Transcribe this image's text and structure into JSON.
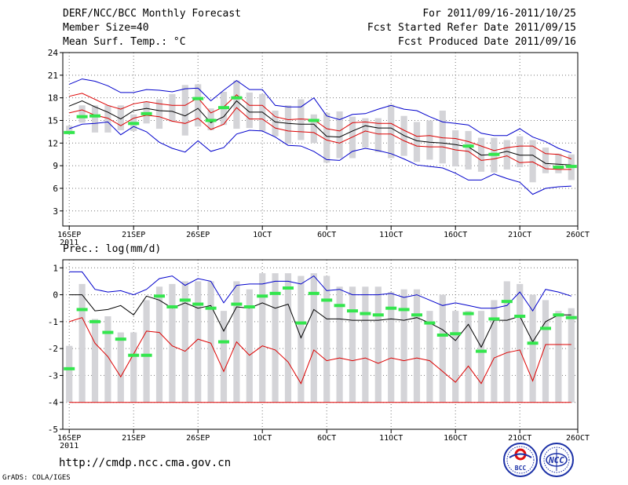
{
  "header": {
    "left_line1": "DERF/NCC/BCC Monthly Forecast",
    "left_line2": "Member Size=40",
    "left_line3": "Mean Surf. Temp.: °C",
    "right_line1": "For 2011/09/16-2011/10/25",
    "right_line2": "Fcst Started Refer Date 2011/09/15",
    "right_line3": "Fcst Produced Date 2011/09/16"
  },
  "panel2_title": "Prec.: log(mm/d)",
  "footer": {
    "url": "http://cmdp.ncc.cma.gov.cn",
    "credit": "GrADS: COLA/IGES",
    "logo1_text": "BCC",
    "logo2_text": "NCC"
  },
  "x_ticks": [
    {
      "day": 0,
      "label": "16SEP",
      "sub": "2011"
    },
    {
      "day": 5,
      "label": "21SEP",
      "sub": ""
    },
    {
      "day": 10,
      "label": "26SEP",
      "sub": ""
    },
    {
      "day": 15,
      "label": "1OCT",
      "sub": ""
    },
    {
      "day": 20,
      "label": "6OCT",
      "sub": ""
    },
    {
      "day": 25,
      "label": "11OCT",
      "sub": ""
    },
    {
      "day": 30,
      "label": "16OCT",
      "sub": ""
    },
    {
      "day": 35,
      "label": "21OCT",
      "sub": ""
    },
    {
      "day": 39.5,
      "label": "26OCT",
      "sub": ""
    }
  ],
  "chart_data": [
    {
      "type": "line",
      "title": "Mean Surf. Temp.: °C",
      "x": [
        0,
        1,
        2,
        3,
        4,
        5,
        6,
        7,
        8,
        9,
        10,
        11,
        12,
        13,
        14,
        15,
        16,
        17,
        18,
        19,
        20,
        21,
        22,
        23,
        24,
        25,
        26,
        27,
        28,
        29,
        30,
        31,
        32,
        33,
        34,
        35,
        36,
        37,
        38,
        39
      ],
      "xlim": [
        -0.5,
        39.5
      ],
      "ylim": [
        1,
        24
      ],
      "yticks": [
        3,
        6,
        9,
        12,
        15,
        18,
        21,
        24
      ],
      "series": [
        {
          "name": "max",
          "color": "#0000cc",
          "values": [
            19.8,
            20.5,
            20.2,
            19.6,
            18.7,
            18.7,
            19.1,
            19.0,
            18.8,
            19.2,
            19.3,
            17.6,
            19.0,
            20.3,
            19.1,
            19.1,
            17.0,
            16.8,
            16.8,
            18.0,
            15.6,
            15.1,
            15.8,
            15.9,
            16.5,
            17.0,
            16.5,
            16.3,
            15.5,
            14.8,
            14.6,
            14.4,
            13.3,
            13.0,
            13.0,
            13.9,
            12.8,
            12.2,
            11.3,
            10.7
          ]
        },
        {
          "name": "upper",
          "color": "#dd0000",
          "values": [
            18.2,
            18.6,
            17.8,
            17.0,
            16.5,
            17.2,
            17.5,
            17.2,
            17.0,
            17.0,
            18.0,
            16.0,
            16.8,
            18.4,
            17.0,
            17.0,
            15.5,
            15.1,
            15.2,
            15.1,
            13.9,
            13.6,
            14.7,
            14.8,
            14.6,
            14.6,
            13.7,
            12.9,
            13.0,
            12.7,
            12.6,
            12.2,
            11.6,
            11.0,
            11.4,
            11.6,
            11.6,
            10.6,
            10.5,
            9.9
          ]
        },
        {
          "name": "mean",
          "color": "#000000",
          "values": [
            16.9,
            17.6,
            16.8,
            16.1,
            15.2,
            16.3,
            16.6,
            16.3,
            16.2,
            15.6,
            16.6,
            14.7,
            15.5,
            17.6,
            16.1,
            16.1,
            14.8,
            14.6,
            14.5,
            14.5,
            12.9,
            12.8,
            13.6,
            14.3,
            14.0,
            14.0,
            13.0,
            12.3,
            12.1,
            12.0,
            11.8,
            11.5,
            10.4,
            10.5,
            10.9,
            10.4,
            10.4,
            9.3,
            9.2,
            9.1
          ]
        },
        {
          "name": "lower",
          "color": "#dd0000",
          "values": [
            16.0,
            16.4,
            15.7,
            15.3,
            14.3,
            15.3,
            15.7,
            15.5,
            14.9,
            14.6,
            15.3,
            13.8,
            14.5,
            16.7,
            15.2,
            15.2,
            14.0,
            13.6,
            13.5,
            13.4,
            12.4,
            12.0,
            12.8,
            13.6,
            13.2,
            13.2,
            12.3,
            11.6,
            11.5,
            11.5,
            11.1,
            10.9,
            9.7,
            9.9,
            10.3,
            9.4,
            9.5,
            8.6,
            8.5,
            8.5
          ]
        },
        {
          "name": "min",
          "color": "#0000cc",
          "values": [
            13.9,
            14.5,
            14.6,
            14.8,
            13.1,
            14.2,
            13.5,
            12.1,
            11.3,
            10.8,
            12.3,
            10.9,
            11.4,
            13.2,
            13.7,
            13.6,
            12.8,
            11.7,
            11.6,
            10.9,
            9.8,
            9.7,
            10.9,
            11.3,
            11.0,
            10.6,
            9.9,
            9.1,
            8.9,
            8.7,
            8.0,
            7.1,
            7.1,
            7.9,
            7.3,
            6.8,
            5.2,
            6.0,
            6.2,
            6.3
          ]
        }
      ],
      "box_top": [
        14.3,
        17.0,
        17.0,
        17.0,
        17.0,
        15.8,
        17.5,
        17.8,
        18.5,
        19.7,
        19.8,
        16.6,
        18.8,
        20.3,
        18.7,
        18.5,
        16.3,
        17.0,
        17.8,
        15.8,
        16.0,
        16.2,
        15.5,
        15.3,
        15.3,
        17.1,
        15.6,
        14.8,
        15.0,
        16.3,
        13.7,
        13.6,
        12.7,
        12.7,
        12.4,
        12.9,
        12.4,
        11.4,
        10.6,
        10.5
      ],
      "box_bottom": [
        13.2,
        14.7,
        13.4,
        13.4,
        13.7,
        13.6,
        14.6,
        13.9,
        14.8,
        13.0,
        14.2,
        13.7,
        14.4,
        13.9,
        14.0,
        13.6,
        12.9,
        11.9,
        12.4,
        12.0,
        9.4,
        10.0,
        10.0,
        11.4,
        10.8,
        10.0,
        10.3,
        9.5,
        9.8,
        9.3,
        8.9,
        8.5,
        8.2,
        8.1,
        8.5,
        8.8,
        6.8,
        8.0,
        8.0,
        7.1
      ],
      "observed": [
        13.4,
        15.5,
        15.6,
        null,
        null,
        14.6,
        15.9,
        null,
        null,
        null,
        17.9,
        15.0,
        16.7,
        18.0,
        null,
        null,
        null,
        null,
        null,
        15.0,
        null,
        null,
        null,
        null,
        null,
        null,
        null,
        null,
        null,
        null,
        null,
        11.6,
        null,
        10.5,
        null,
        null,
        null,
        null,
        8.8,
        8.9
      ]
    },
    {
      "type": "line",
      "title": "Prec.: log(mm/d)",
      "x": [
        0,
        1,
        2,
        3,
        4,
        5,
        6,
        7,
        8,
        9,
        10,
        11,
        12,
        13,
        14,
        15,
        16,
        17,
        18,
        19,
        20,
        21,
        22,
        23,
        24,
        25,
        26,
        27,
        28,
        29,
        30,
        31,
        32,
        33,
        34,
        35,
        36,
        37,
        38,
        39
      ],
      "xlim": [
        -0.5,
        39.5
      ],
      "ylim": [
        -5,
        1.3
      ],
      "yticks": [
        -5,
        -4,
        -3,
        -2,
        -1,
        0,
        1
      ],
      "series": [
        {
          "name": "max",
          "color": "#0000cc",
          "values": [
            0.85,
            0.85,
            0.2,
            0.1,
            0.15,
            0.0,
            0.2,
            0.6,
            0.7,
            0.35,
            0.6,
            0.5,
            -0.3,
            0.35,
            0.4,
            0.4,
            0.5,
            0.5,
            0.4,
            0.7,
            0.15,
            0.2,
            0.0,
            0.0,
            0.0,
            0.05,
            -0.1,
            0.0,
            -0.2,
            -0.4,
            -0.3,
            -0.4,
            -0.5,
            -0.5,
            -0.4,
            0.1,
            -0.6,
            0.2,
            0.1,
            -0.05
          ]
        },
        {
          "name": "mean",
          "color": "#000000",
          "values": [
            0.0,
            0.0,
            -0.6,
            -0.55,
            -0.4,
            -0.75,
            -0.05,
            -0.2,
            -0.5,
            -0.3,
            -0.5,
            -0.4,
            -1.35,
            -0.45,
            -0.5,
            -0.3,
            -0.5,
            -0.35,
            -1.6,
            -0.55,
            -0.9,
            -0.9,
            -0.95,
            -0.95,
            -0.95,
            -0.9,
            -0.95,
            -0.85,
            -1.05,
            -1.3,
            -1.7,
            -1.1,
            -1.95,
            -0.95,
            -0.95,
            -0.8,
            -1.75,
            -1.0,
            -0.75,
            -0.75
          ]
        },
        {
          "name": "low",
          "color": "#dd0000",
          "values": [
            -1.0,
            -0.85,
            -1.8,
            -2.3,
            -3.05,
            -2.2,
            -1.35,
            -1.4,
            -1.9,
            -2.1,
            -1.65,
            -1.8,
            -2.85,
            -1.75,
            -2.25,
            -1.9,
            -2.05,
            -2.5,
            -3.3,
            -2.05,
            -2.45,
            -2.35,
            -2.45,
            -2.35,
            -2.55,
            -2.35,
            -2.45,
            -2.35,
            -2.45,
            -2.85,
            -3.25,
            -2.65,
            -3.3,
            -2.35,
            -2.15,
            -2.05,
            -3.2,
            -1.85,
            -1.85,
            -1.85
          ]
        },
        {
          "name": "floor",
          "color": "#dd0000",
          "values": [
            -4.0,
            -4.0,
            -4.0,
            -4.0,
            -4.0,
            -4.0,
            -4.0,
            -4.0,
            -4.0,
            -4.0,
            -4.0,
            -4.0,
            -4.0,
            -4.0,
            -4.0,
            -4.0,
            -4.0,
            -4.0,
            -4.0,
            -4.0,
            -4.0,
            -4.0,
            -4.0,
            -4.0,
            -4.0,
            -4.0,
            -4.0,
            -4.0,
            -4.0,
            -4.0,
            -4.0,
            -4.0,
            -4.0,
            -4.0,
            -4.0,
            -4.0,
            -4.0,
            -4.0,
            -4.0,
            -4.0
          ]
        }
      ],
      "box_top": [
        -1.9,
        0.4,
        -0.9,
        -0.8,
        -1.4,
        -1.4,
        -0.2,
        0.3,
        0.4,
        0.5,
        0.5,
        0.5,
        -0.6,
        0.5,
        0.2,
        0.8,
        0.8,
        0.8,
        0.7,
        0.8,
        0.7,
        0.3,
        0.3,
        0.3,
        0.3,
        0.1,
        0.2,
        0.2,
        -0.6,
        0.0,
        -0.6,
        -0.6,
        -0.6,
        -0.2,
        0.5,
        0.4,
        0.0,
        -0.2,
        -0.6,
        -0.5
      ],
      "box_bottom": [
        -4.0,
        -4.0,
        -4.0,
        -4.0,
        -4.0,
        -4.0,
        -4.0,
        -4.0,
        -4.0,
        -4.0,
        -4.0,
        -4.0,
        -4.0,
        -4.0,
        -4.0,
        -4.0,
        -4.0,
        -4.0,
        -4.0,
        -4.0,
        -4.0,
        -4.0,
        -4.0,
        -4.0,
        -4.0,
        -4.0,
        -4.0,
        -4.0,
        -4.0,
        -4.0,
        -4.0,
        -4.0,
        -4.0,
        -4.0,
        -4.0,
        -4.0,
        -4.0,
        -4.0,
        -4.0,
        -4.0
      ],
      "observed": [
        -2.75,
        -0.55,
        -1.0,
        -1.4,
        -1.65,
        -2.25,
        -2.25,
        -0.05,
        -0.45,
        -0.2,
        -0.35,
        -0.5,
        -1.75,
        -0.35,
        -0.45,
        -0.05,
        0.05,
        0.25,
        -1.05,
        0.05,
        -0.2,
        -0.4,
        -0.6,
        -0.7,
        -0.75,
        -0.5,
        -0.55,
        -0.75,
        -1.05,
        -1.5,
        -1.45,
        -0.7,
        -2.1,
        -0.9,
        -0.25,
        -0.8,
        -1.8,
        -1.25,
        -0.75,
        -0.85
      ]
    }
  ]
}
